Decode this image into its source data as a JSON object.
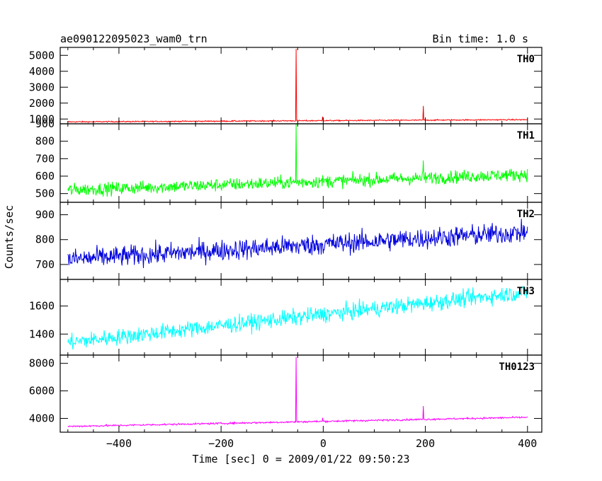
{
  "header": {
    "title": "ae090122095023_wam0_trn",
    "bin_time": "Bin time: 1.0 s"
  },
  "chart_data": {
    "type": "line",
    "title": "ae090122095023_wam0_trn",
    "subtitle": "Bin time: 1.0 s",
    "xlabel": "Time [sec] 0 = 2009/01/22 09:50:23",
    "ylabel": "Counts/sec",
    "xlim": [
      -515,
      428
    ],
    "x_ticks": [
      -400,
      -200,
      0,
      200,
      400
    ],
    "x_tick_labels": [
      "−400",
      "−200",
      "0",
      "200",
      "400"
    ],
    "x_range": [
      -500,
      400
    ],
    "series": [
      {
        "name": "TH0",
        "color": "#ff0000",
        "ylim": [
          700,
          5500
        ],
        "y_ticks": [
          1000,
          2000,
          3000,
          4000,
          5000
        ],
        "baseline_start": 820,
        "baseline_end": 960,
        "noise": 35,
        "spikes": [
          {
            "x": -53,
            "y": 5400
          },
          {
            "x": -1,
            "y": 1150
          },
          {
            "x": 196,
            "y": 1820
          }
        ]
      },
      {
        "name": "TH1",
        "color": "#00ff00",
        "ylim": [
          450,
          900
        ],
        "y_ticks": [
          500,
          600,
          700,
          800,
          900
        ],
        "baseline_start": 520,
        "baseline_end": 610,
        "noise": 35,
        "spikes": [
          {
            "x": -53,
            "y": 900
          },
          {
            "x": 196,
            "y": 690
          }
        ]
      },
      {
        "name": "TH2",
        "color": "#0000dd",
        "ylim": [
          640,
          950
        ],
        "y_ticks": [
          700,
          800,
          900
        ],
        "baseline_start": 720,
        "baseline_end": 830,
        "noise": 40,
        "spikes": []
      },
      {
        "name": "TH3",
        "color": "#00ffff",
        "ylim": [
          1250,
          1790
        ],
        "y_ticks": [
          1400,
          1600
        ],
        "baseline_start": 1340,
        "baseline_end": 1700,
        "noise": 55,
        "spikes": []
      },
      {
        "name": "TH0123",
        "color": "#ff00ff",
        "ylim": [
          3000,
          8600
        ],
        "y_ticks": [
          4000,
          6000,
          8000
        ],
        "baseline_start": 3420,
        "baseline_end": 4080,
        "noise": 60,
        "spikes": [
          {
            "x": -53,
            "y": 8450
          },
          {
            "x": -1,
            "y": 4050
          },
          {
            "x": 196,
            "y": 4900
          }
        ]
      }
    ]
  }
}
